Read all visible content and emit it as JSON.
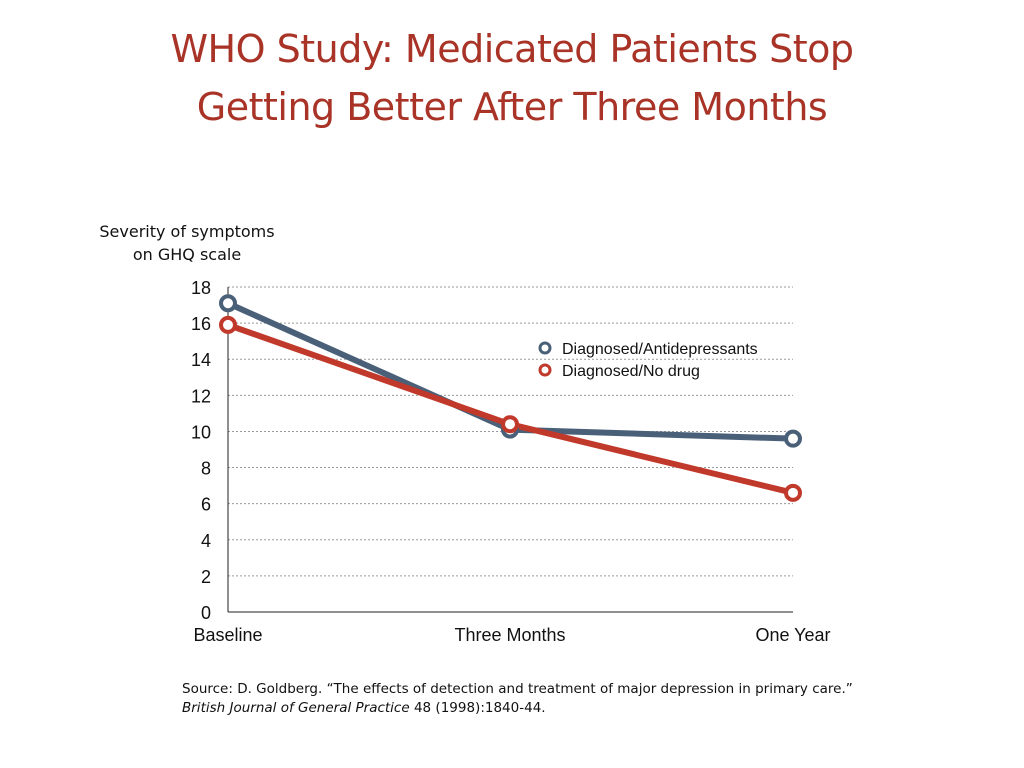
{
  "title_lines": [
    "WHO Study: Medicated Patients Stop",
    "Getting Better After Three Months"
  ],
  "source": {
    "prefix": "Source: D. Goldberg. “The effects of detection and treatment of major depression in primary care.” ",
    "journal": "British Journal of General Practice",
    "suffix": " 48 (1998):1840-44."
  },
  "chart_data": {
    "type": "line",
    "ylabel_lines": [
      "Severity of symptoms",
      "on GHQ scale"
    ],
    "xlabel": "",
    "categories": [
      "Baseline",
      "Three Months",
      "One Year"
    ],
    "ylim": [
      0,
      18
    ],
    "yticks": [
      0,
      2,
      4,
      6,
      8,
      10,
      12,
      14,
      16,
      18
    ],
    "grid": true,
    "legend_position": "upper-right",
    "series": [
      {
        "name": "Diagnosed/Antidepressants",
        "color": "#4a6078",
        "values": [
          17.1,
          10.1,
          9.6
        ]
      },
      {
        "name": "Diagnosed/No drug",
        "color": "#c0392b",
        "values": [
          15.9,
          10.4,
          6.6
        ]
      }
    ]
  }
}
